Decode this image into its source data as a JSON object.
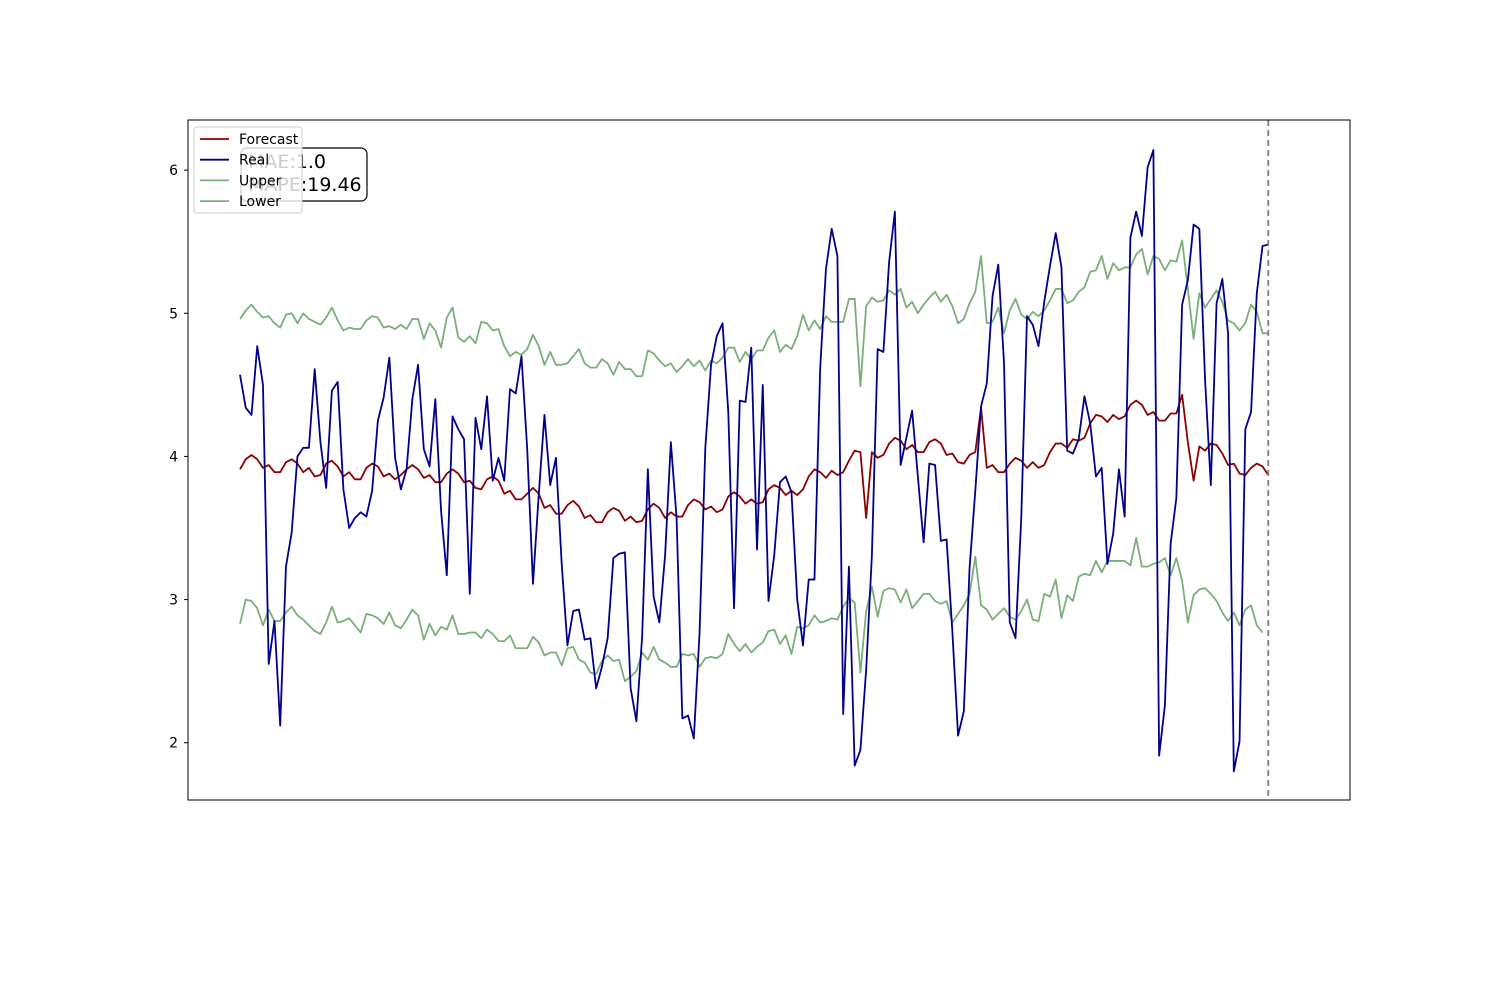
{
  "chart_data": {
    "type": "line",
    "x_start": 0,
    "x_end": 184,
    "forecast_start": 179,
    "ylim": [
      1.6,
      6.35
    ],
    "yticks": [
      2,
      3,
      4,
      5,
      6
    ],
    "grid": false,
    "legend_placement": "upper-left",
    "annotation": {
      "mae_text": "MAE:1.0",
      "mape_text": "MAPE:19.46"
    },
    "series": [
      {
        "name": "Forecast",
        "color": "#8b0000",
        "values": [
          3.91,
          3.98,
          4.01,
          3.98,
          3.92,
          3.94,
          3.89,
          3.89,
          3.96,
          3.98,
          3.95,
          3.89,
          3.92,
          3.86,
          3.87,
          3.95,
          3.97,
          3.93,
          3.86,
          3.89,
          3.84,
          3.84,
          3.92,
          3.95,
          3.93,
          3.86,
          3.88,
          3.84,
          3.87,
          3.91,
          3.94,
          3.91,
          3.85,
          3.87,
          3.82,
          3.82,
          3.88,
          3.91,
          3.88,
          3.82,
          3.83,
          3.78,
          3.77,
          3.84,
          3.86,
          3.83,
          3.74,
          3.76,
          3.7,
          3.7,
          3.74,
          3.78,
          3.74,
          3.64,
          3.66,
          3.6,
          3.6,
          3.66,
          3.69,
          3.65,
          3.57,
          3.59,
          3.54,
          3.54,
          3.61,
          3.64,
          3.62,
          3.55,
          3.58,
          3.54,
          3.55,
          3.63,
          3.67,
          3.64,
          3.57,
          3.61,
          3.58,
          3.58,
          3.66,
          3.7,
          3.68,
          3.63,
          3.65,
          3.61,
          3.63,
          3.72,
          3.75,
          3.72,
          3.67,
          3.7,
          3.67,
          3.68,
          3.77,
          3.8,
          3.78,
          3.73,
          3.76,
          3.73,
          3.77,
          3.86,
          3.91,
          3.89,
          3.85,
          3.9,
          3.87,
          3.89,
          3.97,
          4.04,
          4.03,
          3.57,
          4.03,
          3.99,
          4.01,
          4.09,
          4.13,
          4.11,
          4.05,
          4.08,
          4.03,
          4.03,
          4.1,
          4.12,
          4.09,
          4.01,
          4.02,
          3.96,
          3.95,
          4.01,
          4.03,
          4.34,
          3.92,
          3.94,
          3.89,
          3.89,
          3.95,
          3.99,
          3.97,
          3.92,
          3.96,
          3.92,
          3.94,
          4.03,
          4.09,
          4.09,
          4.06,
          4.12,
          4.11,
          4.13,
          4.23,
          4.29,
          4.28,
          4.24,
          4.29,
          4.26,
          4.28,
          4.36,
          4.39,
          4.36,
          4.29,
          4.31,
          4.25,
          4.25,
          4.3,
          4.3,
          4.43,
          4.1,
          3.83,
          4.07,
          4.04,
          4.09,
          4.08,
          4.02,
          3.94,
          3.95,
          3.88,
          3.87,
          3.92,
          3.95,
          3.93,
          3.87
        ]
      },
      {
        "name": "Real",
        "color": "#00008b",
        "values": [
          4.57,
          4.34,
          4.29,
          4.77,
          4.5,
          2.55,
          2.85,
          2.12,
          3.23,
          3.47,
          4.0,
          4.06,
          4.06,
          4.61,
          4.1,
          3.78,
          4.46,
          4.52,
          3.77,
          3.5,
          3.57,
          3.61,
          3.58,
          3.76,
          4.25,
          4.41,
          4.69,
          3.99,
          3.77,
          3.91,
          4.4,
          4.64,
          4.05,
          3.93,
          4.4,
          3.62,
          3.17,
          4.28,
          4.19,
          4.12,
          3.04,
          4.27,
          4.05,
          4.42,
          3.83,
          3.99,
          3.83,
          4.47,
          4.44,
          4.7,
          4.05,
          3.11,
          3.73,
          4.29,
          3.8,
          3.99,
          3.25,
          2.68,
          2.92,
          2.93,
          2.72,
          2.73,
          2.38,
          2.53,
          2.73,
          3.29,
          3.32,
          3.33,
          2.38,
          2.15,
          2.74,
          3.91,
          3.02,
          2.84,
          3.31,
          4.1,
          3.57,
          2.17,
          2.19,
          2.03,
          2.77,
          4.06,
          4.64,
          4.84,
          4.93,
          4.31,
          2.94,
          4.39,
          4.38,
          4.76,
          3.35,
          4.5,
          2.99,
          3.31,
          3.82,
          3.86,
          3.75,
          3.0,
          2.68,
          3.14,
          3.14,
          4.62,
          5.31,
          5.59,
          5.4,
          2.2,
          3.23,
          1.84,
          1.95,
          2.51,
          3.31,
          4.75,
          4.73,
          5.36,
          5.71,
          3.94,
          4.13,
          4.32,
          3.86,
          3.4,
          3.95,
          3.94,
          3.41,
          3.42,
          2.78,
          2.05,
          2.22,
          3.22,
          3.76,
          4.35,
          4.51,
          5.12,
          5.34,
          4.65,
          2.84,
          2.73,
          3.57,
          4.98,
          4.92,
          4.77,
          5.08,
          5.33,
          5.56,
          5.32,
          4.04,
          4.02,
          4.12,
          4.42,
          4.23,
          3.86,
          3.92,
          3.25,
          3.46,
          3.91,
          3.58,
          5.53,
          5.71,
          5.54,
          6.02,
          6.14,
          1.91,
          2.26,
          3.39,
          3.71,
          5.06,
          5.23,
          5.62,
          5.59,
          4.53,
          3.8,
          5.07,
          5.24,
          4.86,
          1.8,
          2.01,
          4.19,
          4.31,
          5.14,
          5.47,
          5.48
        ]
      },
      {
        "name": "Upper",
        "color": "#7aaf7a",
        "values": [
          4.96,
          5.02,
          5.06,
          5.01,
          4.97,
          4.98,
          4.93,
          4.9,
          4.99,
          5.0,
          4.93,
          5.0,
          4.96,
          4.94,
          4.92,
          4.97,
          5.04,
          4.95,
          4.88,
          4.9,
          4.89,
          4.89,
          4.95,
          4.98,
          4.97,
          4.9,
          4.91,
          4.89,
          4.92,
          4.89,
          4.96,
          4.96,
          4.82,
          4.93,
          4.88,
          4.76,
          4.97,
          5.04,
          4.83,
          4.8,
          4.84,
          4.79,
          4.94,
          4.93,
          4.88,
          4.89,
          4.77,
          4.7,
          4.73,
          4.71,
          4.75,
          4.85,
          4.77,
          4.64,
          4.73,
          4.64,
          4.64,
          4.65,
          4.7,
          4.75,
          4.65,
          4.62,
          4.62,
          4.68,
          4.65,
          4.57,
          4.66,
          4.61,
          4.61,
          4.56,
          4.56,
          4.74,
          4.72,
          4.67,
          4.63,
          4.65,
          4.59,
          4.63,
          4.68,
          4.63,
          4.67,
          4.6,
          4.67,
          4.65,
          4.69,
          4.76,
          4.76,
          4.66,
          4.73,
          4.68,
          4.74,
          4.74,
          4.83,
          4.88,
          4.73,
          4.78,
          4.75,
          4.84,
          4.99,
          4.88,
          4.95,
          4.89,
          4.98,
          4.94,
          4.94,
          4.94,
          5.1,
          5.1,
          4.49,
          5.05,
          5.11,
          5.08,
          5.09,
          5.16,
          5.13,
          5.17,
          5.04,
          5.08,
          5.0,
          5.06,
          5.11,
          5.15,
          5.08,
          5.13,
          5.05,
          4.93,
          4.96,
          5.07,
          5.15,
          5.4,
          4.93,
          4.94,
          5.04,
          4.86,
          5.02,
          5.1,
          4.99,
          4.96,
          5.01,
          4.98,
          5.02,
          5.09,
          5.17,
          5.17,
          5.07,
          5.09,
          5.15,
          5.18,
          5.29,
          5.3,
          5.4,
          5.24,
          5.35,
          5.3,
          5.32,
          5.32,
          5.41,
          5.45,
          5.27,
          5.4,
          5.38,
          5.3,
          5.37,
          5.36,
          5.51,
          5.17,
          4.82,
          5.14,
          5.04,
          5.1,
          5.16,
          5.08,
          4.95,
          4.93,
          4.88,
          4.93,
          5.06,
          5.01,
          4.86,
          4.86
        ]
      },
      {
        "name": "Lower",
        "color": "#7aaf7a",
        "values": [
          2.83,
          3.0,
          2.99,
          2.94,
          2.82,
          2.93,
          2.85,
          2.85,
          2.91,
          2.95,
          2.89,
          2.86,
          2.82,
          2.78,
          2.76,
          2.84,
          2.95,
          2.84,
          2.85,
          2.87,
          2.82,
          2.77,
          2.9,
          2.89,
          2.87,
          2.83,
          2.91,
          2.82,
          2.8,
          2.86,
          2.93,
          2.89,
          2.72,
          2.83,
          2.75,
          2.81,
          2.79,
          2.89,
          2.76,
          2.76,
          2.77,
          2.77,
          2.73,
          2.79,
          2.76,
          2.71,
          2.71,
          2.75,
          2.66,
          2.66,
          2.66,
          2.74,
          2.7,
          2.61,
          2.63,
          2.63,
          2.54,
          2.66,
          2.67,
          2.58,
          2.56,
          2.49,
          2.48,
          2.57,
          2.61,
          2.57,
          2.58,
          2.43,
          2.46,
          2.5,
          2.63,
          2.58,
          2.67,
          2.58,
          2.56,
          2.53,
          2.53,
          2.62,
          2.61,
          2.62,
          2.53,
          2.59,
          2.6,
          2.59,
          2.62,
          2.76,
          2.69,
          2.64,
          2.69,
          2.63,
          2.67,
          2.7,
          2.78,
          2.79,
          2.69,
          2.75,
          2.62,
          2.81,
          2.8,
          2.82,
          2.89,
          2.84,
          2.85,
          2.87,
          2.86,
          2.95,
          3.01,
          2.98,
          2.49,
          2.92,
          3.09,
          2.88,
          3.06,
          3.08,
          3.07,
          2.98,
          3.07,
          2.94,
          2.99,
          3.04,
          3.04,
          2.99,
          2.97,
          2.99,
          2.84,
          2.9,
          2.96,
          3.04,
          3.3,
          2.96,
          2.93,
          2.86,
          2.9,
          2.94,
          2.88,
          2.86,
          2.92,
          3.0,
          2.86,
          2.85,
          3.04,
          3.02,
          3.14,
          2.87,
          3.03,
          2.99,
          3.16,
          3.18,
          3.17,
          3.27,
          3.19,
          3.27,
          3.27,
          3.27,
          3.27,
          3.24,
          3.43,
          3.23,
          3.23,
          3.25,
          3.26,
          3.29,
          3.17,
          3.29,
          3.13,
          2.84,
          3.03,
          3.07,
          3.08,
          3.04,
          2.99,
          2.91,
          2.85,
          2.91,
          2.82,
          2.93,
          2.96,
          2.82,
          2.77
        ]
      }
    ]
  }
}
